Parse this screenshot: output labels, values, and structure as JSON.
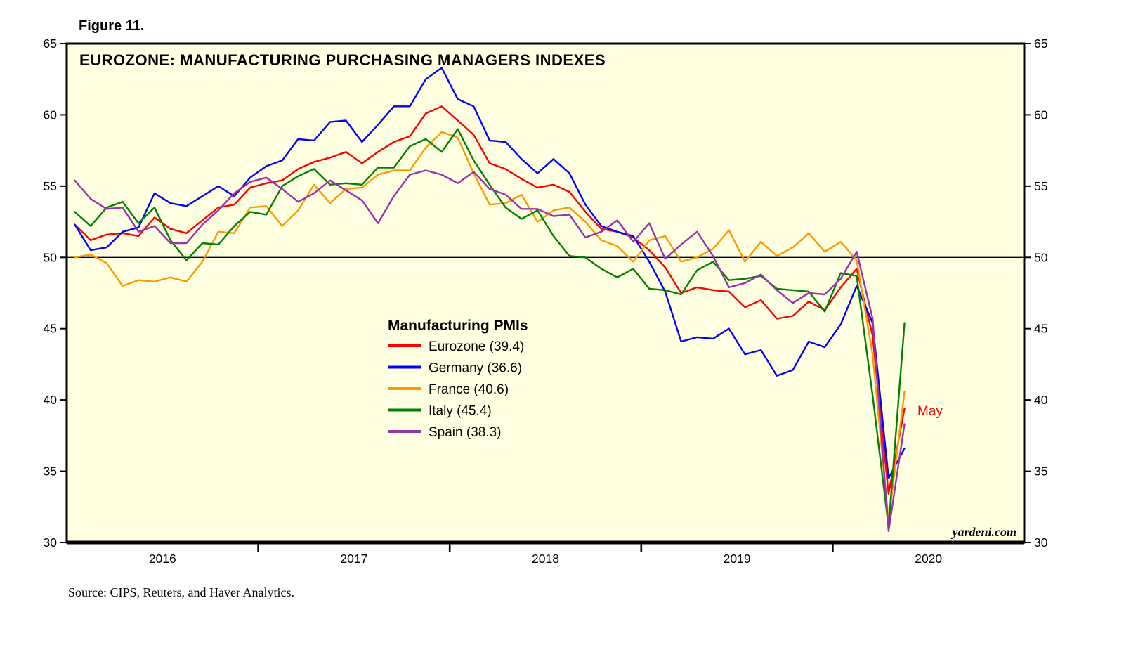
{
  "figure_label": "Figure 11.",
  "title": "EUROZONE: MANUFACTURING PURCHASING MANAGERS INDEXES",
  "annotation_may": "May",
  "watermark": "yardeni.com",
  "source": "Source: CIPS, Reuters, and Haver Analytics.",
  "legend": {
    "title": "Manufacturing PMIs",
    "items": [
      {
        "label": "Eurozone (39.4)",
        "color": "#ff0000"
      },
      {
        "label": "Germany (36.6)",
        "color": "#0000ff"
      },
      {
        "label": "France (40.6)",
        "color": "#ff9900"
      },
      {
        "label": "Italy (45.4)",
        "color": "#008000"
      },
      {
        "label": "Spain (38.3)",
        "color": "#9933aa"
      }
    ]
  },
  "chart_data": {
    "type": "line",
    "title": "EUROZONE: MANUFACTURING PURCHASING MANAGERS INDEXES",
    "ylim": [
      30,
      65
    ],
    "yticks": [
      30,
      35,
      40,
      45,
      50,
      55,
      60,
      65
    ],
    "reference_line": 50,
    "x_axis_years": [
      "2016",
      "2017",
      "2018",
      "2019",
      "2020"
    ],
    "x_axis_span_months": 60,
    "frequency": "monthly",
    "months": [
      "2016-01",
      "2016-02",
      "2016-03",
      "2016-04",
      "2016-05",
      "2016-06",
      "2016-07",
      "2016-08",
      "2016-09",
      "2016-10",
      "2016-11",
      "2016-12",
      "2017-01",
      "2017-02",
      "2017-03",
      "2017-04",
      "2017-05",
      "2017-06",
      "2017-07",
      "2017-08",
      "2017-09",
      "2017-10",
      "2017-11",
      "2017-12",
      "2018-01",
      "2018-02",
      "2018-03",
      "2018-04",
      "2018-05",
      "2018-06",
      "2018-07",
      "2018-08",
      "2018-09",
      "2018-10",
      "2018-11",
      "2018-12",
      "2019-01",
      "2019-02",
      "2019-03",
      "2019-04",
      "2019-05",
      "2019-06",
      "2019-07",
      "2019-08",
      "2019-09",
      "2019-10",
      "2019-11",
      "2019-12",
      "2020-01",
      "2020-02",
      "2020-03",
      "2020-04",
      "2020-05"
    ],
    "series": [
      {
        "name": "Eurozone",
        "final_value": 39.4,
        "color": "#ff0000",
        "values": [
          52.3,
          51.2,
          51.6,
          51.7,
          51.5,
          52.8,
          52.0,
          51.7,
          52.6,
          53.5,
          53.7,
          54.9,
          55.2,
          55.4,
          56.2,
          56.7,
          57.0,
          57.4,
          56.6,
          57.4,
          58.1,
          58.5,
          60.1,
          60.6,
          59.6,
          58.6,
          56.6,
          56.2,
          55.5,
          54.9,
          55.1,
          54.6,
          53.2,
          52.0,
          51.8,
          51.4,
          50.5,
          49.3,
          47.5,
          47.9,
          47.7,
          47.6,
          46.5,
          47.0,
          45.7,
          45.9,
          46.9,
          46.3,
          47.9,
          49.2,
          44.5,
          33.4,
          39.4
        ]
      },
      {
        "name": "Germany",
        "final_value": 36.6,
        "color": "#0000ff",
        "values": [
          52.3,
          50.5,
          50.7,
          51.8,
          52.1,
          54.5,
          53.8,
          53.6,
          54.3,
          55.0,
          54.3,
          55.6,
          56.4,
          56.8,
          58.3,
          58.2,
          59.5,
          59.6,
          58.1,
          59.3,
          60.6,
          60.6,
          62.5,
          63.3,
          61.1,
          60.6,
          58.2,
          58.1,
          56.9,
          55.9,
          56.9,
          55.9,
          53.7,
          52.2,
          51.8,
          51.5,
          49.7,
          47.6,
          44.1,
          44.4,
          44.3,
          45.0,
          43.2,
          43.5,
          41.7,
          42.1,
          44.1,
          43.7,
          45.3,
          48.0,
          45.4,
          34.5,
          36.6
        ]
      },
      {
        "name": "France",
        "final_value": 40.6,
        "color": "#ff9900",
        "values": [
          50.0,
          50.2,
          49.6,
          48.0,
          48.4,
          48.3,
          48.6,
          48.3,
          49.7,
          51.8,
          51.7,
          53.5,
          53.6,
          52.2,
          53.3,
          55.1,
          53.8,
          54.8,
          54.9,
          55.8,
          56.1,
          56.1,
          57.7,
          58.8,
          58.4,
          55.9,
          53.7,
          53.8,
          54.4,
          52.5,
          53.3,
          53.5,
          52.5,
          51.2,
          50.8,
          49.7,
          51.2,
          51.5,
          49.7,
          50.0,
          50.6,
          51.9,
          49.7,
          51.1,
          50.1,
          50.7,
          51.7,
          50.4,
          51.1,
          49.8,
          43.2,
          31.5,
          40.6
        ]
      },
      {
        "name": "Italy",
        "final_value": 45.4,
        "color": "#008000",
        "values": [
          53.2,
          52.2,
          53.5,
          53.9,
          52.4,
          53.5,
          51.2,
          49.8,
          51.0,
          50.9,
          52.2,
          53.2,
          53.0,
          55.0,
          55.7,
          56.2,
          55.1,
          55.2,
          55.1,
          56.3,
          56.3,
          57.8,
          58.3,
          57.4,
          59.0,
          56.8,
          55.1,
          53.5,
          52.7,
          53.3,
          51.5,
          50.1,
          50.0,
          49.2,
          48.6,
          49.2,
          47.8,
          47.7,
          47.4,
          49.1,
          49.7,
          48.4,
          48.5,
          48.7,
          47.8,
          47.7,
          47.6,
          46.2,
          48.9,
          48.7,
          40.3,
          31.1,
          45.4
        ]
      },
      {
        "name": "Spain",
        "final_value": 38.3,
        "color": "#9933aa",
        "values": [
          55.4,
          54.1,
          53.4,
          53.5,
          51.8,
          52.2,
          51.0,
          51.0,
          52.3,
          53.3,
          54.5,
          55.3,
          55.6,
          54.8,
          53.9,
          54.5,
          55.4,
          54.7,
          54.0,
          52.4,
          54.3,
          55.8,
          56.1,
          55.8,
          55.2,
          56.0,
          54.8,
          54.4,
          53.4,
          53.4,
          52.9,
          53.0,
          51.4,
          51.8,
          52.6,
          51.1,
          52.4,
          49.9,
          50.9,
          51.8,
          50.1,
          47.9,
          48.2,
          48.8,
          47.7,
          46.8,
          47.5,
          47.4,
          48.5,
          50.4,
          45.7,
          30.8,
          38.3
        ]
      }
    ]
  }
}
